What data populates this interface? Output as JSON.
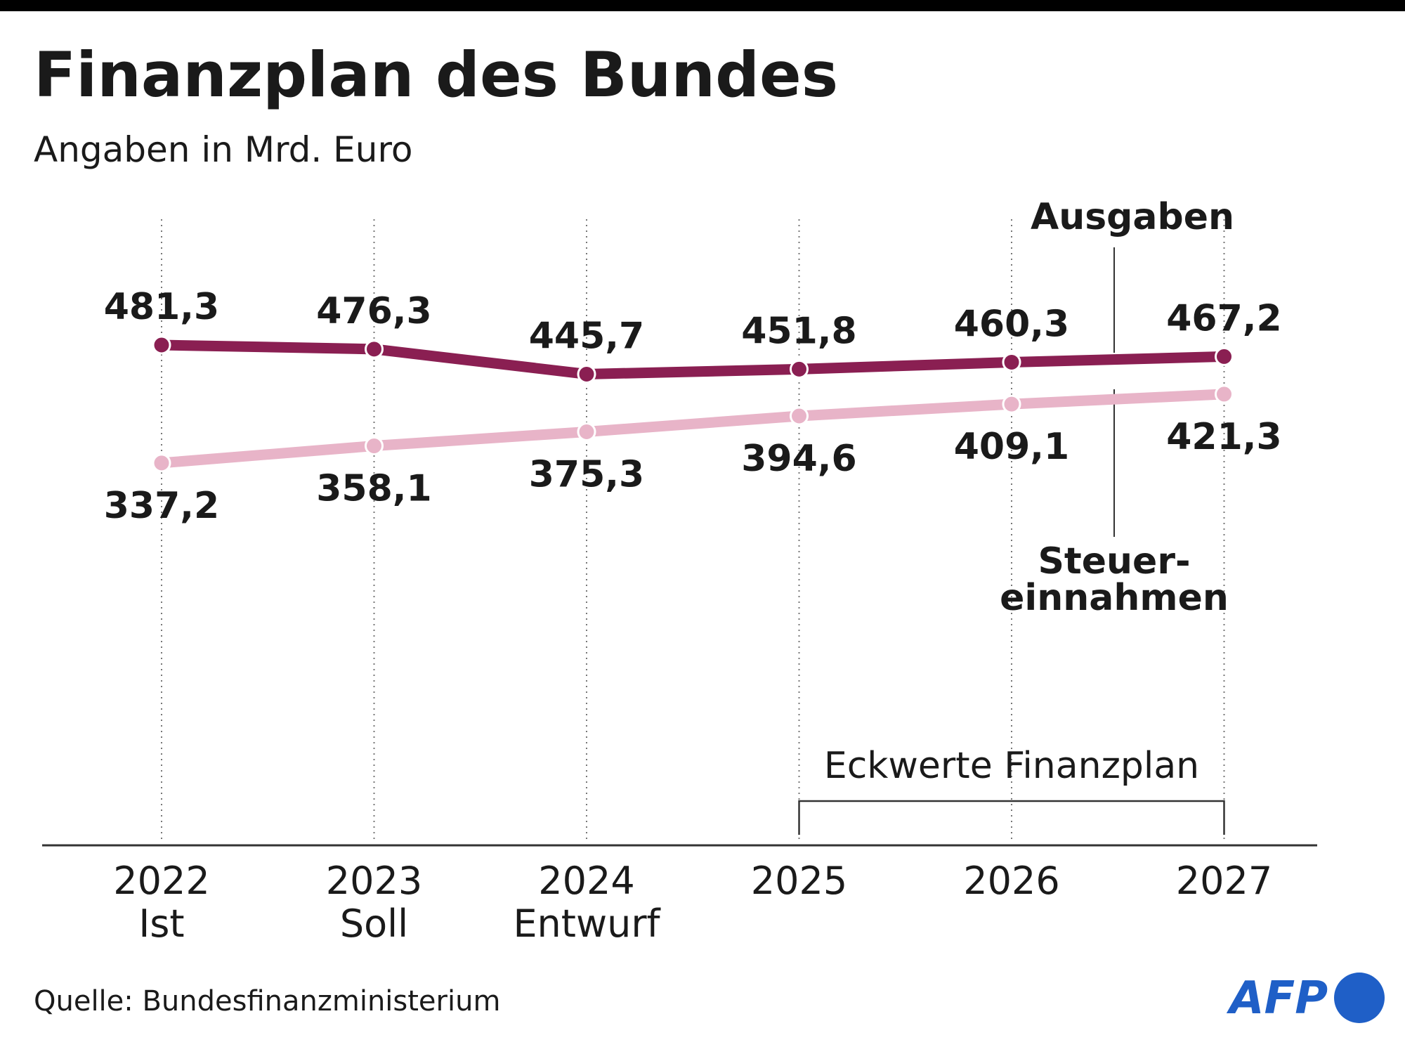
{
  "header": {
    "title": "Finanzplan des Bundes",
    "subtitle": "Angaben in Mrd. Euro"
  },
  "footer": {
    "source": "Quelle: Bundesfinanzministerium",
    "logo_text": "AFP"
  },
  "colors": {
    "ausgaben": "#8a1f52",
    "steuereinnahmen": "#e8b4c8",
    "text": "#1a1a1a",
    "logo_blue": "#1f5fc7",
    "top_bar": "#000000"
  },
  "chart_data": {
    "type": "line",
    "categories": [
      "2022",
      "2023",
      "2024",
      "2025",
      "2026",
      "2027"
    ],
    "category_sublabels": [
      "Ist",
      "Soll",
      "Entwurf",
      "",
      "",
      ""
    ],
    "series": [
      {
        "name": "Ausgaben",
        "values": [
          481.3,
          476.3,
          445.7,
          451.8,
          460.3,
          467.2
        ],
        "labels": [
          "481,3",
          "476,3",
          "445,7",
          "451,8",
          "460,3",
          "467,2"
        ]
      },
      {
        "name": "Steuereinnahmen",
        "name_lines": [
          "Steuer-",
          "einnahmen"
        ],
        "values": [
          337.2,
          358.1,
          375.3,
          394.6,
          409.1,
          421.3
        ],
        "labels": [
          "337,2",
          "358,1",
          "375,3",
          "394,6",
          "409,1",
          "421,3"
        ]
      }
    ],
    "annotation": {
      "text": "Eckwerte Finanzplan",
      "from": "2025",
      "to": "2027"
    },
    "grid": "vertical-dotted",
    "legend": "inline"
  }
}
